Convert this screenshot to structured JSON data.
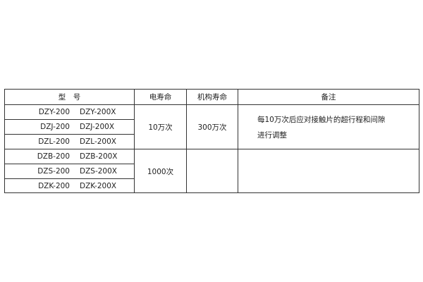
{
  "table": {
    "headers": {
      "model": "型　号",
      "electrical_life": "电寿命",
      "mechanical_life": "机构寿命",
      "remarks": "备注"
    },
    "models": [
      [
        "DZY-200",
        "DZY-200X"
      ],
      [
        "DZJ-200",
        "DZJ-200X"
      ],
      [
        "DZL-200",
        "DZL-200X"
      ],
      [
        "DZB-200",
        "DZB-200X"
      ],
      [
        "DZS-200",
        "DZS-200X"
      ],
      [
        "DZK-200",
        "DZK-200X"
      ]
    ],
    "groups": [
      {
        "electrical_life": "10万次",
        "mechanical_life": "300万次",
        "remarks_line1": "每10万次后应对接触片的超行程和间隙",
        "remarks_line2": "进行调整"
      },
      {
        "electrical_life": "1000次",
        "mechanical_life": "",
        "remarks_line1": "",
        "remarks_line2": ""
      }
    ]
  }
}
